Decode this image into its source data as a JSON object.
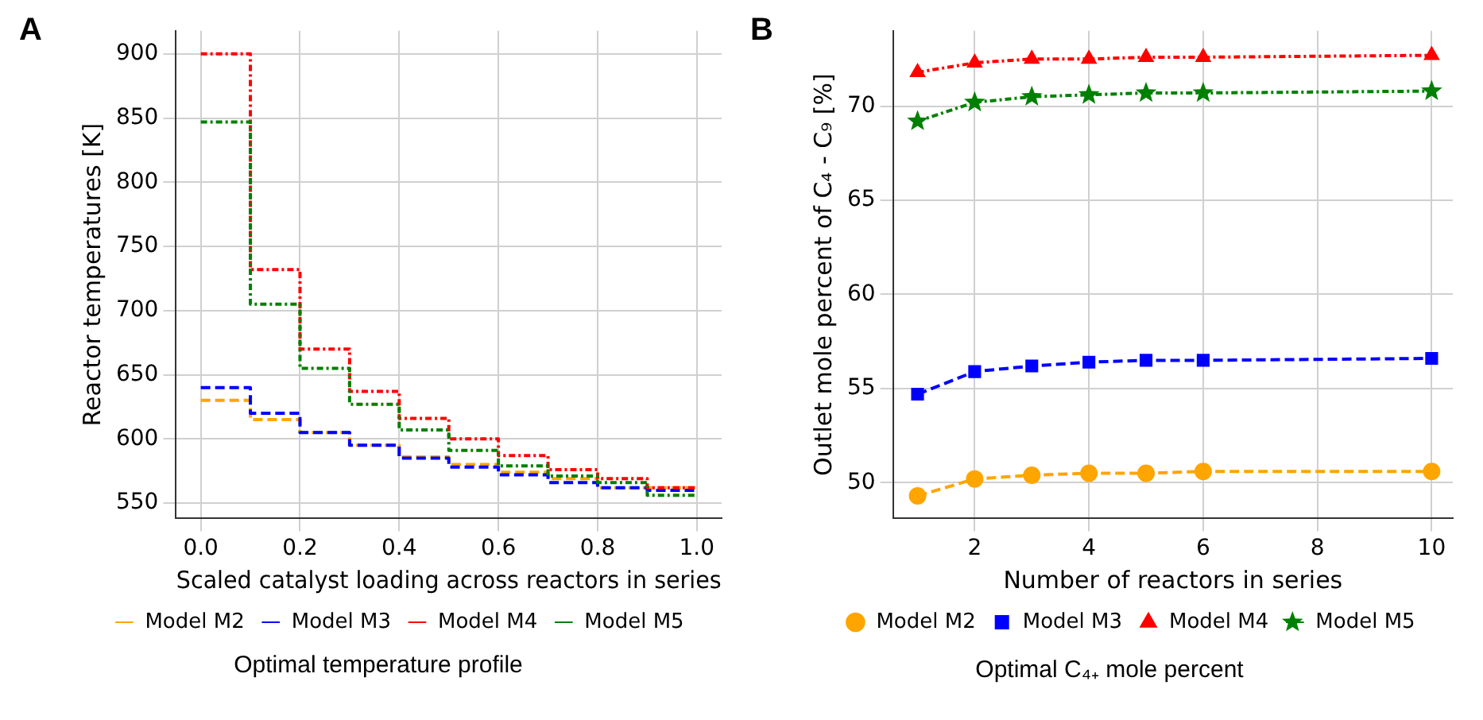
{
  "chart_data": [
    {
      "type": "step",
      "title": "Optimal temperature profile",
      "xlabel": "Scaled catalyst loading across reactors in series",
      "ylabel": "Reactor temperatures [K]",
      "annotations": [
        "A"
      ],
      "x": [
        0,
        0.1,
        0.2,
        0.3,
        0.4,
        0.5,
        0.6,
        0.7,
        0.8,
        0.9,
        1.0
      ],
      "series": [
        {
          "name": "Model M2",
          "color": "#ffa500",
          "line_style": "dashed",
          "values": [
            630,
            615,
            605,
            595,
            586,
            580,
            574,
            569,
            562,
            562,
            562
          ]
        },
        {
          "name": "Model M3",
          "color": "#0000ff",
          "line_style": "dashed",
          "values": [
            640,
            620,
            605,
            595,
            585,
            578,
            572,
            566,
            562,
            560,
            560
          ]
        },
        {
          "name": "Model M4",
          "color": "#ff0000",
          "line_style": "dotted",
          "values": [
            900,
            732,
            670,
            637,
            616,
            600,
            587,
            576,
            569,
            562,
            562
          ]
        },
        {
          "name": "Model M5",
          "color": "#008000",
          "line_style": "dotted",
          "values": [
            847,
            705,
            655,
            627,
            607,
            591,
            579,
            571,
            566,
            556,
            556
          ]
        }
      ],
      "xlim": [
        -0.05,
        1.05
      ],
      "xticks": [
        {
          "value": 0,
          "label": "0.0"
        },
        {
          "value": 0.2,
          "label": "0.2"
        },
        {
          "value": 0.4,
          "label": "0.4"
        },
        {
          "value": 0.6,
          "label": "0.6"
        },
        {
          "value": 0.8,
          "label": "0.8"
        },
        {
          "value": 1.0,
          "label": "1.0"
        }
      ],
      "ylim": [
        538,
        918
      ],
      "yticks": [
        550,
        600,
        650,
        700,
        750,
        800,
        850,
        900
      ],
      "grid": true,
      "legend": "bottom",
      "marker": "none"
    },
    {
      "type": "line",
      "title": "Optimal C₄₊ mole percent",
      "xlabel": "Number of reactors in series",
      "ylabel": "Outlet mole percent of C₄ - C₉ [%]",
      "annotations": [
        "B"
      ],
      "x": [
        1,
        2,
        3,
        4,
        5,
        6,
        10
      ],
      "series": [
        {
          "name": "Model M2",
          "color": "#ffa500",
          "line_style": "dashed",
          "marker": "circle",
          "values": [
            49.3,
            50.2,
            50.4,
            50.5,
            50.5,
            50.6,
            50.6
          ]
        },
        {
          "name": "Model M3",
          "color": "#0000ff",
          "line_style": "dashed",
          "marker": "square",
          "values": [
            54.7,
            55.9,
            56.2,
            56.4,
            56.5,
            56.5,
            56.6
          ]
        },
        {
          "name": "Model M4",
          "color": "#ff0000",
          "line_style": "dotted",
          "marker": "triangle",
          "values": [
            71.8,
            72.3,
            72.5,
            72.5,
            72.6,
            72.6,
            72.7
          ]
        },
        {
          "name": "Model M5",
          "color": "#008000",
          "line_style": "dotted",
          "marker": "star",
          "values": [
            69.2,
            70.2,
            70.5,
            70.6,
            70.7,
            70.7,
            70.8
          ]
        }
      ],
      "xlim": [
        0.57,
        10.37
      ],
      "xticks": [
        2,
        4,
        6,
        8,
        10
      ],
      "ylim": [
        48.1,
        74
      ],
      "yticks": [
        50,
        55,
        60,
        65,
        70
      ],
      "grid": true,
      "legend": "bottom"
    }
  ]
}
